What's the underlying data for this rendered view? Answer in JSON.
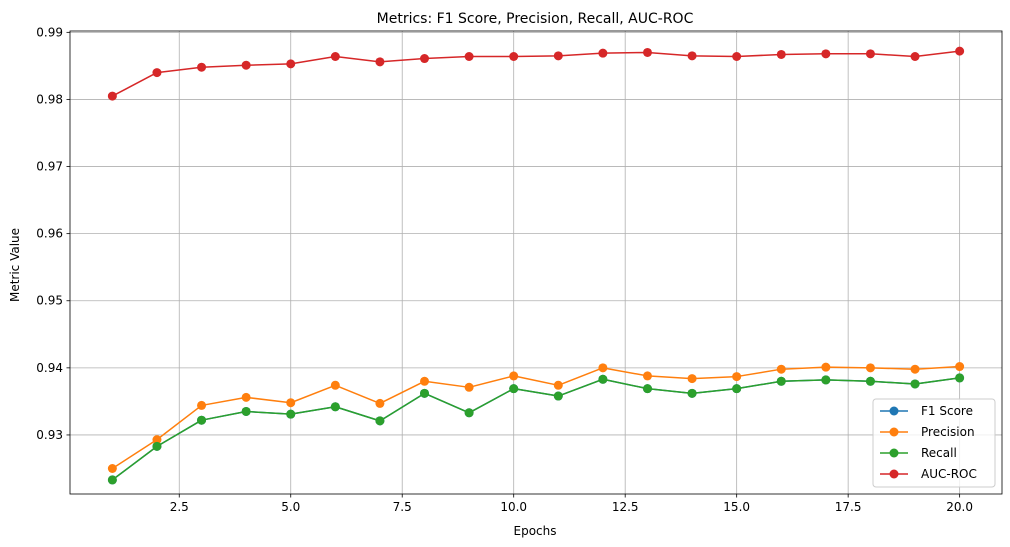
{
  "chart_data": {
    "type": "line",
    "title": "Metrics: F1 Score, Precision, Recall, AUC-ROC",
    "xlabel": "Epochs",
    "ylabel": "Metric Value",
    "xlim": [
      0.05,
      20.95
    ],
    "ylim": [
      0.9212,
      0.9902
    ],
    "xticks": [
      2.5,
      5.0,
      7.5,
      10.0,
      12.5,
      15.0,
      17.5,
      20.0
    ],
    "xtick_labels": [
      "2.5",
      "5.0",
      "7.5",
      "10.0",
      "12.5",
      "15.0",
      "17.5",
      "20.0"
    ],
    "yticks": [
      0.93,
      0.94,
      0.95,
      0.96,
      0.97,
      0.98,
      0.99
    ],
    "ytick_labels": [
      "0.93",
      "0.94",
      "0.95",
      "0.96",
      "0.97",
      "0.98",
      "0.99"
    ],
    "grid": true,
    "legend_position": "lower-right",
    "x": [
      1,
      2,
      3,
      4,
      5,
      6,
      7,
      8,
      9,
      10,
      11,
      12,
      13,
      14,
      15,
      16,
      17,
      18,
      19,
      20
    ],
    "series": [
      {
        "name": "F1 Score",
        "color": "#1f77b4",
        "values": [
          0.9233,
          0.9283,
          0.9322,
          0.9335,
          0.9331,
          0.9342,
          0.9321,
          0.9362,
          0.9333,
          0.9369,
          0.9358,
          0.9383,
          0.9369,
          0.9362,
          0.9369,
          0.938,
          0.9382,
          0.938,
          0.9376,
          0.9385
        ]
      },
      {
        "name": "Precision",
        "color": "#ff7f0e",
        "values": [
          0.925,
          0.9293,
          0.9344,
          0.9356,
          0.9348,
          0.9374,
          0.9347,
          0.938,
          0.9371,
          0.9388,
          0.9374,
          0.94,
          0.9388,
          0.9384,
          0.9387,
          0.9398,
          0.9401,
          0.94,
          0.9398,
          0.9402
        ]
      },
      {
        "name": "Recall",
        "color": "#2ca02c",
        "values": [
          0.9233,
          0.9283,
          0.9322,
          0.9335,
          0.9331,
          0.9342,
          0.9321,
          0.9362,
          0.9333,
          0.9369,
          0.9358,
          0.9383,
          0.9369,
          0.9362,
          0.9369,
          0.938,
          0.9382,
          0.938,
          0.9376,
          0.9385
        ]
      },
      {
        "name": "AUC-ROC",
        "color": "#d62728",
        "values": [
          0.9805,
          0.984,
          0.9848,
          0.9851,
          0.9853,
          0.9864,
          0.9856,
          0.9861,
          0.9864,
          0.9864,
          0.9865,
          0.9869,
          0.987,
          0.9865,
          0.9864,
          0.9867,
          0.9868,
          0.9868,
          0.9864,
          0.9872
        ]
      }
    ]
  }
}
